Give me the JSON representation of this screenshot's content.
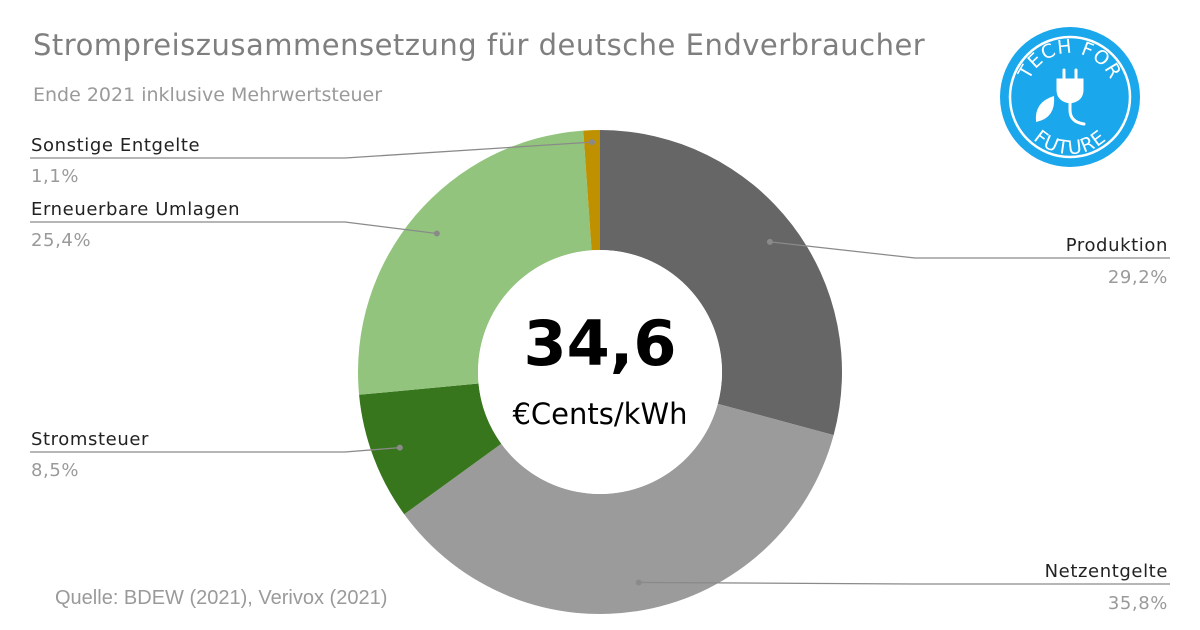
{
  "title": "Strompreiszusammensetzung für deutsche Endverbraucher",
  "subtitle": "Ende 2021 inklusive Mehrwertsteuer",
  "source": "Quelle: BDEW (2021), Verivox (2021)",
  "center": {
    "value": "34,6",
    "unit": "€Cents/kWh"
  },
  "logo": {
    "text_top": "TECH FOR",
    "text_bottom": "FUTURE",
    "color": "#1aa7ec"
  },
  "chart_data": {
    "type": "pie",
    "variant": "donut",
    "slices": [
      {
        "label": "Produktion",
        "value": 29.2,
        "value_label": "29,2%",
        "color": "#666666"
      },
      {
        "label": "Netzentgelte",
        "value": 35.8,
        "value_label": "35,8%",
        "color": "#9b9b9b"
      },
      {
        "label": "Stromsteuer",
        "value": 8.5,
        "value_label": "8,5%",
        "color": "#38761d"
      },
      {
        "label": "Erneuerbare Umlagen",
        "value": 25.4,
        "value_label": "25,4%",
        "color": "#93c47d"
      },
      {
        "label": "Sonstige Entgelte",
        "value": 1.1,
        "value_label": "1,1%",
        "color": "#bf9000"
      }
    ]
  }
}
